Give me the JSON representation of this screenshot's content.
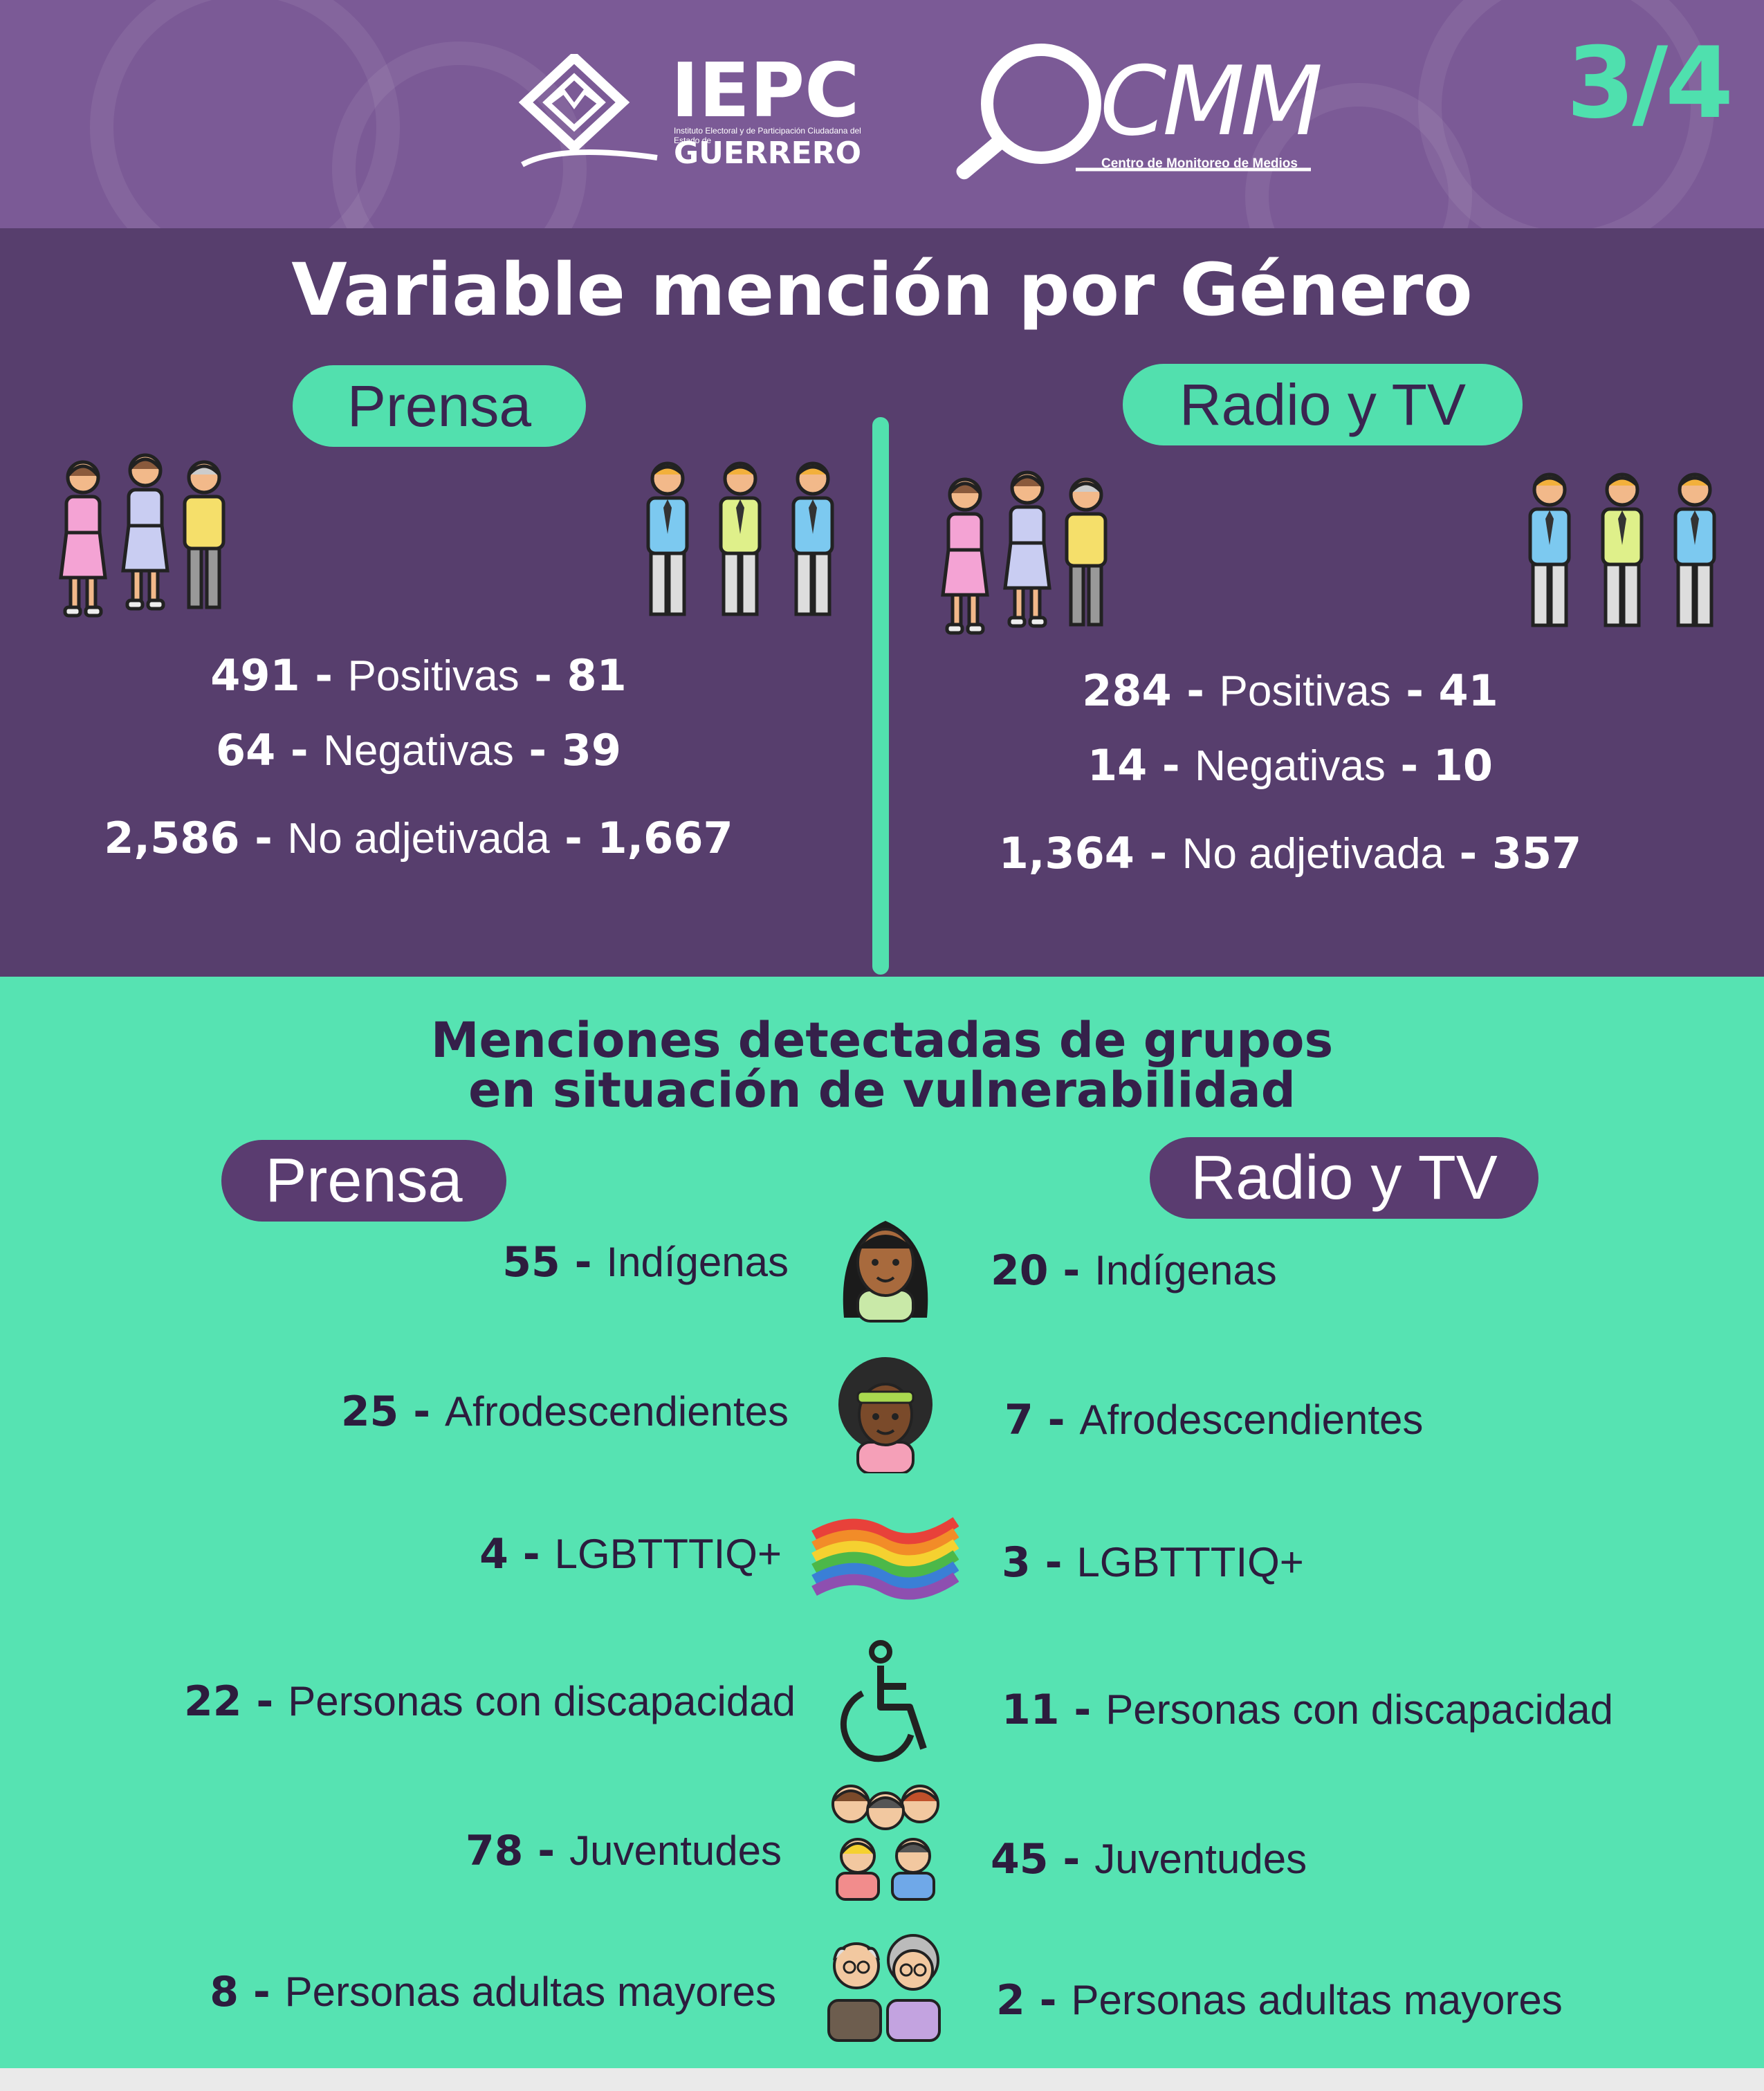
{
  "header": {
    "page_number": "3/4",
    "iepc": {
      "name": "IEPC",
      "subtitle": "Instituto Electoral y de Participación Ciudadana del Estado de",
      "state": "GUERRERO"
    },
    "cmm": {
      "name": "CMM",
      "subtitle": "Centro de Monitoreo de Medios"
    }
  },
  "gender": {
    "title": "Variable mención por Género",
    "prensa": {
      "label": "Prensa",
      "rows": [
        {
          "women": "491",
          "sep1": " - ",
          "label": "Positivas",
          "sep2": " - ",
          "men": "81"
        },
        {
          "women": "64",
          "sep1": " - ",
          "label": "Negativas",
          "sep2": " - ",
          "men": "39"
        },
        {
          "women": "2,586",
          "sep1": " - ",
          "label": "No adjetivada",
          "sep2": " - ",
          "men": "1,667"
        }
      ]
    },
    "radio_tv": {
      "label": "Radio y TV",
      "rows": [
        {
          "women": "284",
          "sep1": " - ",
          "label": "Positivas",
          "sep2": " - ",
          "men": "41"
        },
        {
          "women": "14",
          "sep1": " - ",
          "label": "Negativas",
          "sep2": " - ",
          "men": "10"
        },
        {
          "women": "1,364",
          "sep1": " - ",
          "label": "No adjetivada",
          "sep2": " - ",
          "men": "357"
        }
      ]
    }
  },
  "vulnerable": {
    "title_line1": "Menciones detectadas de grupos",
    "title_line2": "en situación de vulnerabilidad",
    "prensa_label": "Prensa",
    "radio_tv_label": "Radio y TV",
    "groups": [
      {
        "name": "Indígenas",
        "prensa": "55",
        "radio_tv": "20",
        "icon": "indigenous-woman-icon"
      },
      {
        "name": "Afrodescendientes",
        "prensa": "25",
        "radio_tv": "7",
        "icon": "afrodescendant-woman-icon"
      },
      {
        "name": "LGBTTTIQ+",
        "prensa": "4",
        "radio_tv": "3",
        "icon": "rainbow-flag-icon"
      },
      {
        "name": "Personas con discapacidad",
        "prensa": "22",
        "radio_tv": "11",
        "icon": "wheelchair-icon"
      },
      {
        "name": "Juventudes",
        "prensa": "78",
        "radio_tv": "45",
        "icon": "youth-group-icon"
      },
      {
        "name": "Personas adultas mayores",
        "prensa": "8",
        "radio_tv": "2",
        "icon": "elderly-couple-icon"
      }
    ]
  },
  "colors": {
    "purple_dark": "#573e6d",
    "purple_header": "#7b5a96",
    "mint": "#56e3b2",
    "text_dark": "#2d1c3e"
  }
}
